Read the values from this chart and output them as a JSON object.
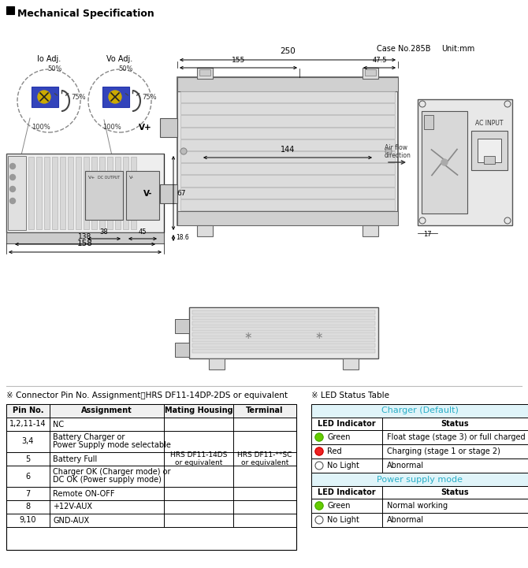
{
  "title": "Mechanical Specification",
  "case_no": "Case No.285B",
  "unit": "Unit:mm",
  "io_adj_label": "Io Adj.",
  "vo_adj_label": "Vo Adj.",
  "dim_250": "250",
  "dim_155": "155",
  "dim_47_5": "47.5",
  "dim_144": "144",
  "dim_67": "67",
  "dim_18_6": "18.6",
  "dim_38": "38",
  "dim_45": "45",
  "dim_138": "138",
  "dim_158": "158",
  "dim_17": "17",
  "vplus": "V+",
  "vminus": "V-",
  "connector_title": "※ Connector Pin No. Assignment：HRS DF11-14DP-2DS or equivalent",
  "led_title": "※ LED Status Table",
  "charger_default": "Charger (Default)",
  "power_supply_mode": "Power supply mode",
  "pin_headers": [
    "Pin No.",
    "Assignment",
    "Mating Housing",
    "Terminal"
  ],
  "pin_rows": [
    [
      "1,2,11‑14",
      "NC",
      "",
      ""
    ],
    [
      "3,4",
      "Battery Charger or\nPower Supply mode selectable",
      "",
      ""
    ],
    [
      "5",
      "Battery Full",
      "HRS DF11-14DS\nor equivalent",
      "HRS DF11-**SC\nor equivalent"
    ],
    [
      "6",
      "Charger OK (Charger mode) or\nDC OK (Power supply mode)",
      "",
      ""
    ],
    [
      "7",
      "Remote ON-OFF",
      "",
      ""
    ],
    [
      "8",
      "+12V-AUX",
      "",
      ""
    ],
    [
      "9,10",
      "GND-AUX",
      "",
      ""
    ]
  ],
  "led_charger_rows": [
    [
      "green",
      "Green",
      "Float stage (stage 3) or full charged"
    ],
    [
      "red",
      "Red",
      "Charging (stage 1 or stage 2)"
    ],
    [
      "none",
      "No Light",
      "Abnormal"
    ]
  ],
  "led_power_rows": [
    [
      "green",
      "Green",
      "Normal working"
    ],
    [
      "none",
      "No Light",
      "Abnormal"
    ]
  ],
  "bg_color": "#ffffff",
  "charger_header_color": "#29aec7",
  "power_header_color": "#29aec7"
}
